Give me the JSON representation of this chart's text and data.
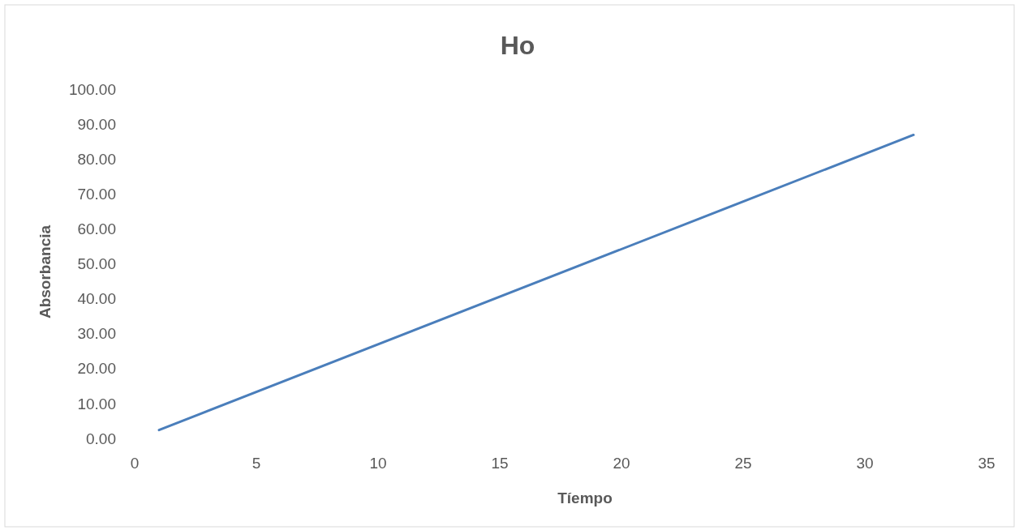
{
  "chart_data": {
    "type": "line",
    "title": "Ho",
    "xlabel": "Tíempo",
    "ylabel": "Absorbancia",
    "x": [
      1,
      32
    ],
    "series": [
      {
        "color": "#4a7ebb",
        "values": [
          2.4,
          86.9
        ]
      }
    ],
    "xlim": [
      0,
      35
    ],
    "xticks": [
      0,
      5,
      10,
      15,
      20,
      25,
      30,
      35
    ],
    "ylim": [
      0,
      100
    ],
    "yticks": [
      {
        "value": 0,
        "label": "0.00"
      },
      {
        "value": 10,
        "label": "10.00"
      },
      {
        "value": 20,
        "label": "20.00"
      },
      {
        "value": 30,
        "label": "30.00"
      },
      {
        "value": 40,
        "label": "40.00"
      },
      {
        "value": 50,
        "label": "50.00"
      },
      {
        "value": 60,
        "label": "60.00"
      },
      {
        "value": 70,
        "label": "70.00"
      },
      {
        "value": 80,
        "label": "80.00"
      },
      {
        "value": 90,
        "label": "90.00"
      },
      {
        "value": 100,
        "label": "100.00"
      }
    ],
    "grid": false
  }
}
